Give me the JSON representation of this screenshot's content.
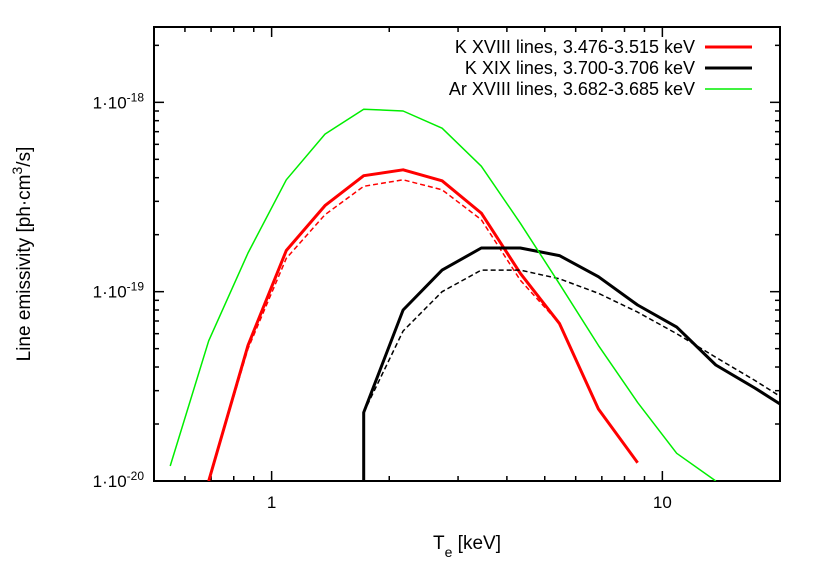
{
  "chart_data": {
    "type": "line",
    "xlabel": "T",
    "xlabel_sub": "e",
    "xlabel_unit": " [keV]",
    "ylabel": "Line emissivity [ph·cm",
    "ylabel_sup": "3",
    "ylabel_unit": "/s]",
    "xscale": "log",
    "yscale": "log",
    "xlim": [
      0.5,
      20
    ],
    "ylim": [
      1e-20,
      2.5e-18
    ],
    "grid": false,
    "legend_position": "top-right",
    "x_ticks": [
      {
        "value": 1,
        "label": "1"
      },
      {
        "value": 10,
        "label": "10"
      }
    ],
    "y_ticks": [
      {
        "value": 1e-20,
        "label_base": "1·10",
        "label_exp": "-20"
      },
      {
        "value": 1e-19,
        "label_base": "1·10",
        "label_exp": "-19"
      },
      {
        "value": 1e-18,
        "label_base": "1·10",
        "label_exp": "-18"
      }
    ],
    "series": [
      {
        "name": "K XVIII lines, 3.476-3.515 keV",
        "color": "#ff0000",
        "style": "solid",
        "width": "thick",
        "x": [
          0.69,
          0.87,
          1.09,
          1.37,
          1.72,
          2.17,
          2.73,
          3.44,
          4.33,
          5.45,
          6.86,
          8.64
        ],
        "y": [
          1e-20,
          5.2e-20,
          1.65e-19,
          2.85e-19,
          4.1e-19,
          4.4e-19,
          3.85e-19,
          2.6e-19,
          1.25e-19,
          6.8e-20,
          2.4e-20,
          1.25e-20
        ]
      },
      {
        "name": "",
        "color": "#ff0000",
        "style": "dashed",
        "width": "thin",
        "x": [
          0.69,
          0.87,
          1.09,
          1.37,
          1.72,
          2.17,
          2.73,
          3.44,
          4.33,
          5.45
        ],
        "y": [
          1e-20,
          5e-20,
          1.5e-19,
          2.55e-19,
          3.6e-19,
          3.9e-19,
          3.45e-19,
          2.4e-19,
          1.15e-19,
          6.8e-20
        ]
      },
      {
        "name": "K XIX lines, 3.700-3.706 keV",
        "color": "#000000",
        "style": "solid",
        "width": "thick",
        "x": [
          1.72,
          1.72,
          2.17,
          2.73,
          3.44,
          4.33,
          5.45,
          6.86,
          8.64,
          10.88,
          13.7,
          17.24,
          20
        ],
        "y": [
          1e-20,
          2.3e-20,
          8e-20,
          1.3e-19,
          1.7e-19,
          1.7e-19,
          1.55e-19,
          1.2e-19,
          8.5e-20,
          6.5e-20,
          4.1e-20,
          3.1e-20,
          2.55e-20
        ]
      },
      {
        "name": "",
        "color": "#000000",
        "style": "dashed",
        "width": "thin",
        "x": [
          1.72,
          2.17,
          2.73,
          3.44,
          4.33,
          5.45,
          6.86,
          8.64,
          10.88,
          13.7,
          17.24,
          20
        ],
        "y": [
          2.3e-20,
          6.2e-20,
          1e-19,
          1.3e-19,
          1.3e-19,
          1.17e-19,
          9.8e-20,
          7.8e-20,
          6e-20,
          4.5e-20,
          3.4e-20,
          2.8e-20
        ]
      },
      {
        "name": "Ar XVIII lines, 3.682-3.685 keV",
        "color": "#00ee00",
        "style": "solid",
        "width": "thin",
        "x": [
          0.55,
          0.69,
          0.87,
          1.09,
          1.37,
          1.72,
          2.17,
          2.73,
          3.44,
          4.33,
          5.45,
          6.86,
          8.64,
          10.88,
          13.7
        ],
        "y": [
          1.2e-20,
          5.5e-20,
          1.6e-19,
          3.9e-19,
          6.8e-19,
          9.2e-19,
          9e-19,
          7.3e-19,
          4.6e-19,
          2.3e-19,
          1.1e-19,
          5.2e-20,
          2.6e-20,
          1.4e-20,
          1e-20
        ]
      }
    ]
  }
}
